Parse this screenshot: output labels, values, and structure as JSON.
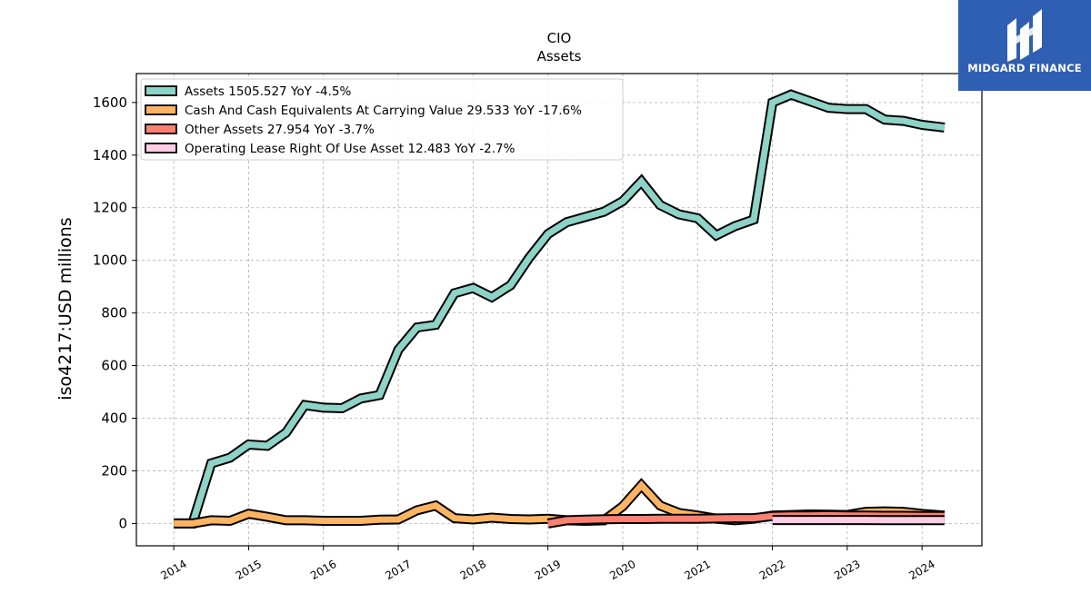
{
  "chart_data": {
    "type": "line",
    "title": "CIO",
    "subtitle": "Assets",
    "ylabel": "iso4217:USD  millions",
    "xlabel": "",
    "xlim": [
      2013.5,
      2024.8
    ],
    "ylim": [
      -85,
      1710
    ],
    "yticks": [
      0,
      200,
      400,
      600,
      800,
      1000,
      1200,
      1400,
      1600
    ],
    "xticks": [
      2014,
      2015,
      2016,
      2017,
      2018,
      2019,
      2020,
      2021,
      2022,
      2023,
      2024
    ],
    "grid": true,
    "legend_position": "top-left",
    "series": [
      {
        "name": "Assets",
        "legend_label": "Assets  1505.527 YoY -4.5%",
        "color": "#8dd3c7",
        "x": [
          2014.0,
          2014.25,
          2014.5,
          2014.75,
          2015.0,
          2015.25,
          2015.5,
          2015.75,
          2016.0,
          2016.25,
          2016.5,
          2016.75,
          2017.0,
          2017.25,
          2017.5,
          2017.75,
          2018.0,
          2018.25,
          2018.5,
          2018.75,
          2019.0,
          2019.25,
          2019.5,
          2019.75,
          2020.0,
          2020.25,
          2020.5,
          2020.75,
          2021.0,
          2021.25,
          2021.5,
          2021.75,
          2022.0,
          2022.25,
          2022.5,
          2022.75,
          2023.0,
          2023.25,
          2023.5,
          2023.75,
          2024.0,
          2024.3
        ],
        "y": [
          0,
          0,
          228,
          250,
          300,
          295,
          345,
          450,
          440,
          438,
          475,
          488,
          660,
          745,
          755,
          875,
          895,
          860,
          905,
          1010,
          1100,
          1145,
          1165,
          1185,
          1225,
          1300,
          1210,
          1175,
          1160,
          1095,
          1130,
          1155,
          1600,
          1630,
          1605,
          1580,
          1575,
          1575,
          1535,
          1530,
          1515,
          1505
        ]
      },
      {
        "name": "Cash And Cash Equivalents At Carrying Value",
        "legend_label": "Cash And Cash Equivalents At Carrying Value  29.533 YoY -17.6%",
        "color": "#fdb462",
        "x": [
          2014.0,
          2014.25,
          2014.5,
          2014.75,
          2015.0,
          2015.25,
          2015.5,
          2015.75,
          2016.0,
          2016.25,
          2016.5,
          2016.75,
          2017.0,
          2017.25,
          2017.5,
          2017.75,
          2018.0,
          2018.25,
          2018.5,
          2018.75,
          2019.0,
          2019.25,
          2019.5,
          2019.75,
          2020.0,
          2020.25,
          2020.5,
          2020.75,
          2021.0,
          2021.25,
          2021.5,
          2021.75,
          2022.0,
          2022.25,
          2022.5,
          2022.75,
          2023.0,
          2023.25,
          2023.5,
          2023.75,
          2024.0,
          2024.3
        ],
        "y": [
          0,
          0,
          12,
          10,
          37,
          25,
          12,
          12,
          10,
          10,
          10,
          14,
          15,
          50,
          68,
          20,
          15,
          22,
          17,
          15,
          18,
          12,
          10,
          12,
          65,
          145,
          68,
          40,
          30,
          18,
          12,
          18,
          30,
          32,
          34,
          33,
          32,
          44,
          46,
          44,
          36,
          30
        ]
      },
      {
        "name": "Other Assets",
        "legend_label": "Other Assets  27.954 YoY -3.7%",
        "color": "#fb8072",
        "x": [
          2019.0,
          2019.25,
          2019.5,
          2019.75,
          2020.0,
          2020.25,
          2020.5,
          2020.75,
          2021.0,
          2021.25,
          2021.5,
          2021.75,
          2022.0,
          2022.25,
          2022.5,
          2022.75,
          2023.0,
          2023.25,
          2023.5,
          2023.75,
          2024.0,
          2024.3
        ],
        "y": [
          0,
          12,
          14,
          16,
          17,
          17,
          18,
          18,
          18,
          19,
          20,
          20,
          28,
          30,
          30,
          31,
          30,
          30,
          29,
          29,
          28,
          28
        ]
      },
      {
        "name": "Operating Lease Right Of Use Asset",
        "legend_label": "Operating Lease Right Of Use Asset  12.483 YoY -2.7%",
        "color": "#fccde5",
        "x": [
          2022.0,
          2022.25,
          2022.5,
          2022.75,
          2023.0,
          2023.25,
          2023.5,
          2023.75,
          2024.0,
          2024.3
        ],
        "y": [
          13,
          13,
          13,
          13,
          13,
          13,
          12.8,
          12.7,
          12.6,
          12.483
        ]
      }
    ]
  },
  "logo": {
    "text": "MIDGARD FINANCE",
    "color": "#2f5fb3"
  }
}
